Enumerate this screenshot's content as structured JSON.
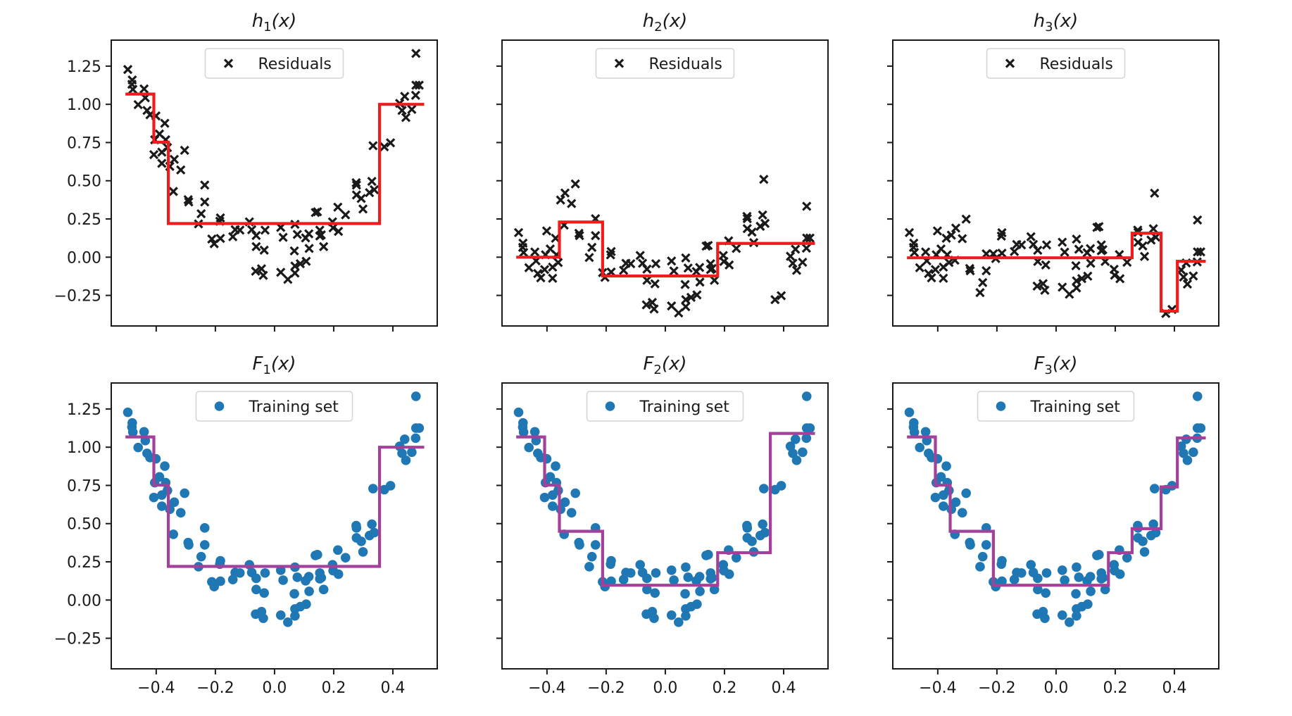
{
  "chart_data": {
    "type": "scatter",
    "layout": "2x3 grid of subplots (top row: residual fits, bottom row: cumulative ensemble fits)",
    "shared_x": true,
    "shared_y": true,
    "xlim": [
      -0.552,
      0.55
    ],
    "ylim": [
      -0.45,
      1.42
    ],
    "x_ticks": [
      -0.4,
      -0.2,
      0.0,
      0.2,
      0.4
    ],
    "x_tick_labels": [
      "−0.4",
      "−0.2",
      "0.0",
      "0.2",
      "0.4"
    ],
    "y_ticks": [
      -0.25,
      0.0,
      0.25,
      0.5,
      0.75,
      1.0,
      1.25
    ],
    "y_tick_labels": [
      "−0.25",
      "0.00",
      "0.25",
      "0.50",
      "0.75",
      "1.00",
      "1.25"
    ],
    "grid": false,
    "colors": {
      "residual_marker": "#1a1a1a",
      "residual_fit_line": "#ee1c1c",
      "training_marker": "#1f77b4",
      "ensemble_fit_line": "#a2409a",
      "axes": "#1a1a1a"
    },
    "training_set": [
      [
        -0.496,
        1.228
      ],
      [
        -0.481,
        1.159
      ],
      [
        -0.482,
        1.131
      ],
      [
        -0.479,
        1.098
      ],
      [
        -0.441,
        1.101
      ],
      [
        -0.437,
        1.043
      ],
      [
        -0.461,
        0.998
      ],
      [
        -0.431,
        0.96
      ],
      [
        -0.421,
        0.932
      ],
      [
        -0.401,
        0.924
      ],
      [
        -0.371,
        0.876
      ],
      [
        -0.389,
        0.806
      ],
      [
        -0.405,
        0.768
      ],
      [
        -0.368,
        0.768
      ],
      [
        -0.362,
        0.717
      ],
      [
        -0.381,
        0.687
      ],
      [
        -0.408,
        0.671
      ],
      [
        -0.304,
        0.699
      ],
      [
        -0.339,
        0.64
      ],
      [
        -0.381,
        0.614
      ],
      [
        -0.354,
        0.594
      ],
      [
        -0.317,
        0.571
      ],
      [
        -0.236,
        0.472
      ],
      [
        -0.342,
        0.43
      ],
      [
        -0.292,
        0.376
      ],
      [
        -0.29,
        0.361
      ],
      [
        -0.236,
        0.361
      ],
      [
        -0.248,
        0.284
      ],
      [
        -0.257,
        0.218
      ],
      [
        -0.183,
        0.257
      ],
      [
        -0.185,
        0.235
      ],
      [
        -0.212,
        0.119
      ],
      [
        -0.204,
        0.088
      ],
      [
        -0.183,
        0.123
      ],
      [
        -0.141,
        0.134
      ],
      [
        -0.133,
        0.18
      ],
      [
        -0.117,
        0.177
      ],
      [
        -0.085,
        0.231
      ],
      [
        -0.077,
        0.18
      ],
      [
        -0.062,
        0.142
      ],
      [
        -0.032,
        0.177
      ],
      [
        -0.062,
        0.069
      ],
      [
        -0.035,
        0.046
      ],
      [
        -0.064,
        -0.092
      ],
      [
        -0.044,
        -0.076
      ],
      [
        -0.038,
        -0.119
      ],
      [
        0.021,
        0.195
      ],
      [
        0.029,
        0.13
      ],
      [
        0.069,
        0.215
      ],
      [
        0.077,
        0.149
      ],
      [
        0.067,
        0.041
      ],
      [
        0.105,
        0.126
      ],
      [
        0.116,
        0.153
      ],
      [
        0.117,
        0.057
      ],
      [
        0.107,
        -0.027
      ],
      [
        0.087,
        -0.043
      ],
      [
        0.069,
        -0.058
      ],
      [
        0.021,
        -0.099
      ],
      [
        0.045,
        -0.145
      ],
      [
        0.069,
        -0.104
      ],
      [
        0.138,
        0.292
      ],
      [
        0.145,
        0.297
      ],
      [
        0.153,
        0.177
      ],
      [
        0.153,
        0.139
      ],
      [
        0.166,
        0.069
      ],
      [
        0.158,
        0.146
      ],
      [
        0.196,
        0.231
      ],
      [
        0.198,
        0.192
      ],
      [
        0.216,
        0.169
      ],
      [
        0.214,
        0.327
      ],
      [
        0.24,
        0.277
      ],
      [
        0.276,
        0.487
      ],
      [
        0.277,
        0.472
      ],
      [
        0.277,
        0.407
      ],
      [
        0.293,
        0.384
      ],
      [
        0.299,
        0.315
      ],
      [
        0.329,
        0.496
      ],
      [
        0.321,
        0.422
      ],
      [
        0.337,
        0.441
      ],
      [
        0.333,
        0.729
      ],
      [
        0.371,
        0.722
      ],
      [
        0.392,
        0.748
      ],
      [
        0.423,
        1.006
      ],
      [
        0.431,
        0.96
      ],
      [
        0.444,
        0.914
      ],
      [
        0.44,
        1.052
      ],
      [
        0.464,
        0.967
      ],
      [
        0.477,
        1.059
      ],
      [
        0.478,
        1.125
      ],
      [
        0.489,
        1.125
      ],
      [
        0.478,
        1.333
      ]
    ],
    "step_range": [
      -0.504,
      0.506
    ],
    "panels": [
      {
        "id": "h1",
        "row": 0,
        "col": 0,
        "title_main": "h",
        "title_sub": "1",
        "title_arg": "(x)",
        "legend_label": "Residuals",
        "legend_position": "upper-center",
        "points": "residuals_from_prior_ensemble",
        "prior_ensemble": null,
        "marker": "x",
        "line_color_key": "residual_fit_line",
        "steps": {
          "breaks": [
            -0.408,
            -0.359,
            0.355
          ],
          "levels": [
            1.067,
            0.752,
            0.22,
            1.0
          ]
        }
      },
      {
        "id": "h2",
        "row": 0,
        "col": 1,
        "title_main": "h",
        "title_sub": "2",
        "title_arg": "(x)",
        "legend_label": "Residuals",
        "legend_position": "upper-center",
        "points": "residuals_from_prior_ensemble",
        "prior_ensemble": "F1",
        "marker": "x",
        "line_color_key": "residual_fit_line",
        "steps": {
          "breaks": [
            -0.358,
            -0.212,
            0.177
          ],
          "levels": [
            0.0,
            0.23,
            -0.123,
            0.09
          ]
        }
      },
      {
        "id": "h3",
        "row": 0,
        "col": 2,
        "title_main": "h",
        "title_sub": "3",
        "title_arg": "(x)",
        "legend_label": "Residuals",
        "legend_position": "upper-center",
        "points": "residuals_from_prior_ensemble",
        "prior_ensemble": "F2",
        "marker": "x",
        "line_color_key": "residual_fit_line",
        "steps": {
          "breaks": [
            0.257,
            0.355,
            0.41
          ],
          "levels": [
            -0.004,
            0.157,
            -0.353,
            -0.027
          ]
        }
      },
      {
        "id": "F1",
        "row": 1,
        "col": 0,
        "title_main": "F",
        "title_sub": "1",
        "title_arg": "(x)",
        "legend_label": "Training set",
        "legend_position": "upper-center",
        "points": "training_set",
        "marker": "o",
        "line_color_key": "ensemble_fit_line",
        "steps": {
          "breaks": [
            -0.408,
            -0.359,
            0.355
          ],
          "levels": [
            1.067,
            0.752,
            0.22,
            1.0
          ]
        }
      },
      {
        "id": "F2",
        "row": 1,
        "col": 1,
        "title_main": "F",
        "title_sub": "2",
        "title_arg": "(x)",
        "legend_label": "Training set",
        "legend_position": "upper-center",
        "points": "training_set",
        "marker": "o",
        "line_color_key": "ensemble_fit_line",
        "steps": {
          "breaks": [
            -0.408,
            -0.358,
            -0.212,
            0.177,
            0.355
          ],
          "levels": [
            1.067,
            0.752,
            0.45,
            0.097,
            0.31,
            1.09
          ]
        }
      },
      {
        "id": "F3",
        "row": 1,
        "col": 2,
        "title_main": "F",
        "title_sub": "3",
        "title_arg": "(x)",
        "legend_label": "Training set",
        "legend_position": "upper-center",
        "points": "training_set",
        "marker": "o",
        "line_color_key": "ensemble_fit_line",
        "steps": {
          "breaks": [
            -0.408,
            -0.358,
            -0.212,
            0.177,
            0.257,
            0.355,
            0.41
          ],
          "levels": [
            1.067,
            0.752,
            0.45,
            0.097,
            0.31,
            0.467,
            0.74,
            1.06
          ]
        }
      }
    ]
  }
}
